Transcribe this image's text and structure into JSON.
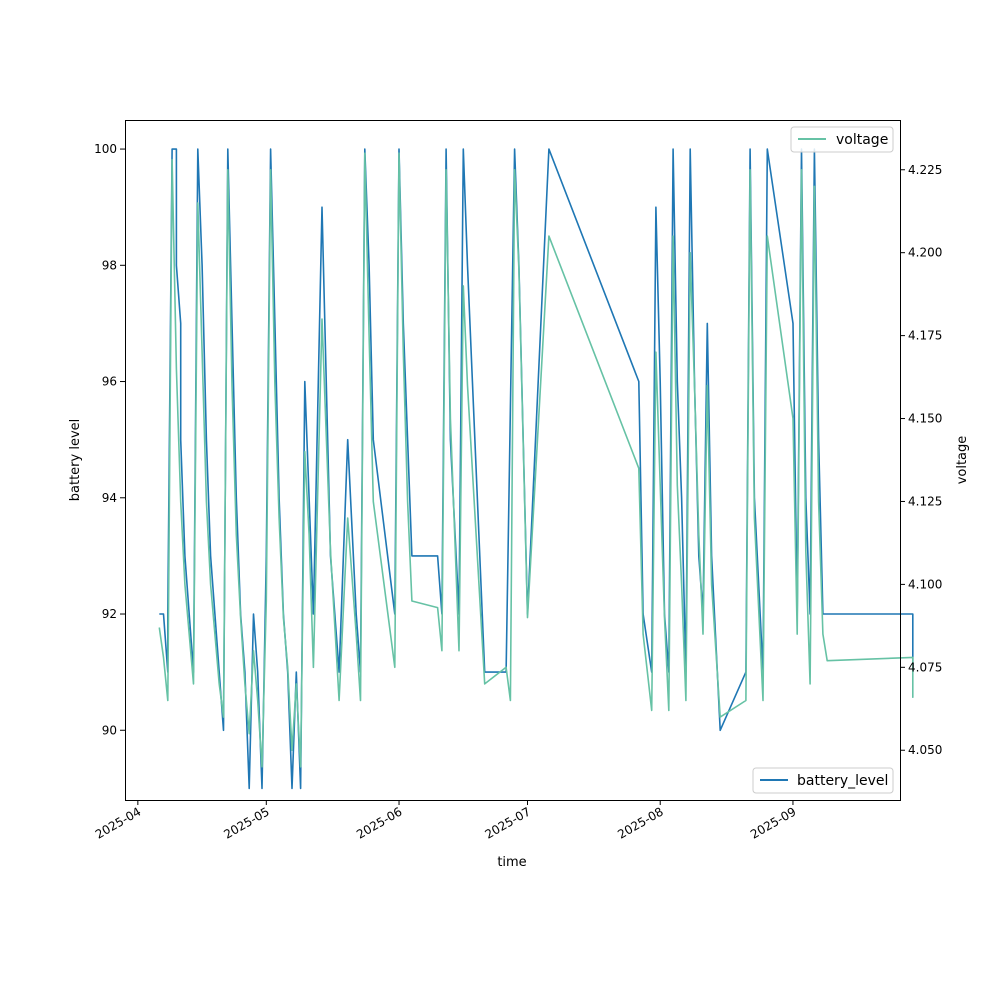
{
  "chart_data": {
    "type": "line",
    "xlabel": "time",
    "ylabel_left": "battery level",
    "ylabel_right": "voltage",
    "x_ticks": [
      "2025-04",
      "2025-05",
      "2025-06",
      "2025-07",
      "2025-08",
      "2025-09"
    ],
    "xlim": [
      "2025-03-29",
      "2025-09-26"
    ],
    "y_left": {
      "lim": [
        88.8,
        100.5
      ],
      "ticks": [
        "90",
        "92",
        "94",
        "96",
        "98",
        "100"
      ]
    },
    "y_right": {
      "lim": [
        4.035,
        4.24
      ],
      "ticks": [
        "4.050",
        "4.075",
        "4.100",
        "4.125",
        "4.150",
        "4.175",
        "4.200",
        "4.225"
      ]
    },
    "grid": false,
    "series": [
      {
        "name": "battery_level",
        "axis": "left",
        "color": "#1f77b4",
        "legend_position": "lower-right",
        "points": [
          [
            "2025-04-06",
            92
          ],
          [
            "2025-04-07",
            92
          ],
          [
            "2025-04-08",
            91
          ],
          [
            "2025-04-08",
            92
          ],
          [
            "2025-04-09",
            100
          ],
          [
            "2025-04-10",
            100
          ],
          [
            "2025-04-10",
            98
          ],
          [
            "2025-04-11",
            97
          ],
          [
            "2025-04-11",
            95
          ],
          [
            "2025-04-12",
            93
          ],
          [
            "2025-04-13",
            92
          ],
          [
            "2025-04-14",
            91
          ],
          [
            "2025-04-15",
            100
          ],
          [
            "2025-04-16",
            98
          ],
          [
            "2025-04-17",
            95
          ],
          [
            "2025-04-18",
            93
          ],
          [
            "2025-04-19",
            92
          ],
          [
            "2025-04-20",
            91
          ],
          [
            "2025-04-21",
            90
          ],
          [
            "2025-04-22",
            100
          ],
          [
            "2025-04-23",
            97
          ],
          [
            "2025-04-24",
            94
          ],
          [
            "2025-04-25",
            92
          ],
          [
            "2025-04-26",
            91
          ],
          [
            "2025-04-27",
            89
          ],
          [
            "2025-04-28",
            92
          ],
          [
            "2025-04-29",
            91
          ],
          [
            "2025-04-30",
            89
          ],
          [
            "2025-05-01",
            93
          ],
          [
            "2025-05-02",
            100
          ],
          [
            "2025-05-03",
            97
          ],
          [
            "2025-05-04",
            94
          ],
          [
            "2025-05-05",
            92
          ],
          [
            "2025-05-06",
            91
          ],
          [
            "2025-05-07",
            89
          ],
          [
            "2025-05-08",
            91
          ],
          [
            "2025-05-09",
            89
          ],
          [
            "2025-05-10",
            96
          ],
          [
            "2025-05-11",
            94
          ],
          [
            "2025-05-12",
            92
          ],
          [
            "2025-05-14",
            99
          ],
          [
            "2025-05-16",
            93
          ],
          [
            "2025-05-18",
            91
          ],
          [
            "2025-05-20",
            95
          ],
          [
            "2025-05-22",
            92
          ],
          [
            "2025-05-23",
            91
          ],
          [
            "2025-05-24",
            100
          ],
          [
            "2025-05-25",
            98
          ],
          [
            "2025-05-26",
            95
          ],
          [
            "2025-05-31",
            92
          ],
          [
            "2025-06-01",
            100
          ],
          [
            "2025-06-02",
            97
          ],
          [
            "2025-06-03",
            95
          ],
          [
            "2025-06-04",
            93
          ],
          [
            "2025-06-10",
            93
          ],
          [
            "2025-06-11",
            92
          ],
          [
            "2025-06-12",
            100
          ],
          [
            "2025-06-13",
            95
          ],
          [
            "2025-06-15",
            92
          ],
          [
            "2025-06-16",
            100
          ],
          [
            "2025-06-17",
            98
          ],
          [
            "2025-06-21",
            91
          ],
          [
            "2025-06-26",
            91
          ],
          [
            "2025-06-28",
            100
          ],
          [
            "2025-06-29",
            98
          ],
          [
            "2025-07-01",
            92
          ],
          [
            "2025-07-06",
            100
          ],
          [
            "2025-07-27",
            96
          ],
          [
            "2025-07-28",
            92
          ],
          [
            "2025-07-30",
            91
          ],
          [
            "2025-07-31",
            99
          ],
          [
            "2025-08-01",
            96
          ],
          [
            "2025-08-02",
            92
          ],
          [
            "2025-08-03",
            91
          ],
          [
            "2025-08-04",
            100
          ],
          [
            "2025-08-05",
            96
          ],
          [
            "2025-08-06",
            94
          ],
          [
            "2025-08-07",
            91
          ],
          [
            "2025-08-08",
            100
          ],
          [
            "2025-08-09",
            96
          ],
          [
            "2025-08-10",
            93
          ],
          [
            "2025-08-11",
            92
          ],
          [
            "2025-08-12",
            97
          ],
          [
            "2025-08-13",
            93
          ],
          [
            "2025-08-15",
            90
          ],
          [
            "2025-08-21",
            91
          ],
          [
            "2025-08-22",
            100
          ],
          [
            "2025-08-23",
            94
          ],
          [
            "2025-08-25",
            91
          ],
          [
            "2025-08-26",
            100
          ],
          [
            "2025-09-01",
            97
          ],
          [
            "2025-09-02",
            92
          ],
          [
            "2025-09-03",
            100
          ],
          [
            "2025-09-04",
            94
          ],
          [
            "2025-09-05",
            92
          ],
          [
            "2025-09-06",
            100
          ],
          [
            "2025-09-07",
            95
          ],
          [
            "2025-09-08",
            92
          ],
          [
            "2025-09-29",
            92
          ],
          [
            "2025-09-29",
            91
          ]
        ]
      },
      {
        "name": "voltage",
        "axis": "right",
        "color": "#66c2a5",
        "legend_position": "upper-right",
        "points": [
          [
            "2025-04-06",
            4.087
          ],
          [
            "2025-04-07",
            4.078
          ],
          [
            "2025-04-08",
            4.065
          ],
          [
            "2025-04-09",
            4.228
          ],
          [
            "2025-04-10",
            4.165
          ],
          [
            "2025-04-11",
            4.125
          ],
          [
            "2025-04-12",
            4.1
          ],
          [
            "2025-04-13",
            4.085
          ],
          [
            "2025-04-14",
            4.07
          ],
          [
            "2025-04-15",
            4.215
          ],
          [
            "2025-04-16",
            4.17
          ],
          [
            "2025-04-17",
            4.125
          ],
          [
            "2025-04-18",
            4.1
          ],
          [
            "2025-04-19",
            4.085
          ],
          [
            "2025-04-20",
            4.07
          ],
          [
            "2025-04-21",
            4.06
          ],
          [
            "2025-04-22",
            4.225
          ],
          [
            "2025-04-23",
            4.16
          ],
          [
            "2025-04-24",
            4.115
          ],
          [
            "2025-04-25",
            4.09
          ],
          [
            "2025-04-26",
            4.07
          ],
          [
            "2025-04-27",
            4.055
          ],
          [
            "2025-04-28",
            4.08
          ],
          [
            "2025-04-29",
            4.065
          ],
          [
            "2025-04-30",
            4.045
          ],
          [
            "2025-05-01",
            4.095
          ],
          [
            "2025-05-02",
            4.225
          ],
          [
            "2025-05-03",
            4.16
          ],
          [
            "2025-05-04",
            4.12
          ],
          [
            "2025-05-05",
            4.09
          ],
          [
            "2025-05-06",
            4.075
          ],
          [
            "2025-05-07",
            4.05
          ],
          [
            "2025-05-08",
            4.07
          ],
          [
            "2025-05-09",
            4.045
          ],
          [
            "2025-05-10",
            4.14
          ],
          [
            "2025-05-11",
            4.115
          ],
          [
            "2025-05-12",
            4.075
          ],
          [
            "2025-05-14",
            4.18
          ],
          [
            "2025-05-16",
            4.11
          ],
          [
            "2025-05-18",
            4.065
          ],
          [
            "2025-05-20",
            4.12
          ],
          [
            "2025-05-22",
            4.085
          ],
          [
            "2025-05-23",
            4.065
          ],
          [
            "2025-05-24",
            4.23
          ],
          [
            "2025-05-25",
            4.175
          ],
          [
            "2025-05-26",
            4.125
          ],
          [
            "2025-05-31",
            4.075
          ],
          [
            "2025-06-01",
            4.23
          ],
          [
            "2025-06-02",
            4.17
          ],
          [
            "2025-06-03",
            4.125
          ],
          [
            "2025-06-04",
            4.095
          ],
          [
            "2025-06-10",
            4.093
          ],
          [
            "2025-06-11",
            4.08
          ],
          [
            "2025-06-12",
            4.225
          ],
          [
            "2025-06-13",
            4.15
          ],
          [
            "2025-06-15",
            4.08
          ],
          [
            "2025-06-16",
            4.19
          ],
          [
            "2025-06-17",
            4.16
          ],
          [
            "2025-06-21",
            4.07
          ],
          [
            "2025-06-26",
            4.075
          ],
          [
            "2025-06-27",
            4.065
          ],
          [
            "2025-06-28",
            4.225
          ],
          [
            "2025-06-29",
            4.195
          ],
          [
            "2025-07-01",
            4.09
          ],
          [
            "2025-07-06",
            4.205
          ],
          [
            "2025-07-27",
            4.135
          ],
          [
            "2025-07-28",
            4.085
          ],
          [
            "2025-07-30",
            4.062
          ],
          [
            "2025-07-31",
            4.17
          ],
          [
            "2025-08-01",
            4.13
          ],
          [
            "2025-08-02",
            4.09
          ],
          [
            "2025-08-03",
            4.062
          ],
          [
            "2025-08-04",
            4.205
          ],
          [
            "2025-08-05",
            4.13
          ],
          [
            "2025-08-06",
            4.1
          ],
          [
            "2025-08-07",
            4.065
          ],
          [
            "2025-08-08",
            4.2
          ],
          [
            "2025-08-09",
            4.16
          ],
          [
            "2025-08-10",
            4.115
          ],
          [
            "2025-08-11",
            4.085
          ],
          [
            "2025-08-12",
            4.16
          ],
          [
            "2025-08-13",
            4.1
          ],
          [
            "2025-08-15",
            4.06
          ],
          [
            "2025-08-21",
            4.065
          ],
          [
            "2025-08-22",
            4.225
          ],
          [
            "2025-08-23",
            4.12
          ],
          [
            "2025-08-25",
            4.065
          ],
          [
            "2025-08-26",
            4.205
          ],
          [
            "2025-09-01",
            4.15
          ],
          [
            "2025-09-02",
            4.085
          ],
          [
            "2025-09-03",
            4.225
          ],
          [
            "2025-09-04",
            4.11
          ],
          [
            "2025-09-05",
            4.07
          ],
          [
            "2025-09-06",
            4.22
          ],
          [
            "2025-09-07",
            4.125
          ],
          [
            "2025-09-08",
            4.085
          ],
          [
            "2025-09-09",
            4.077
          ],
          [
            "2025-09-29",
            4.078
          ],
          [
            "2025-09-29",
            4.066
          ],
          [
            "2025-09-29",
            4.072
          ]
        ]
      }
    ]
  }
}
